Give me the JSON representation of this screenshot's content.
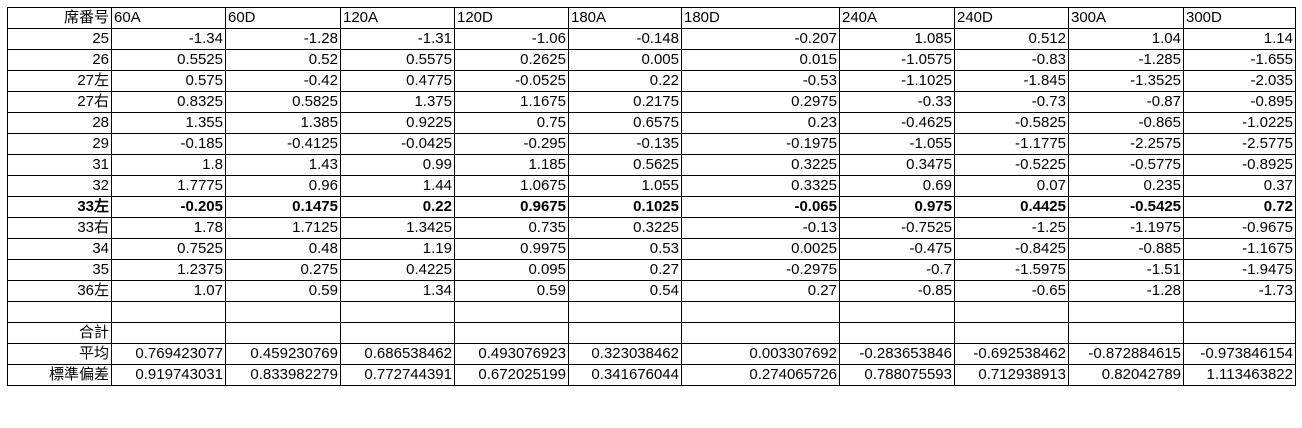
{
  "header": [
    "席番号",
    "60A",
    "60D",
    "120A",
    "120D",
    "180A",
    "180D",
    "240A",
    "240D",
    "300A",
    "300D"
  ],
  "rows": [
    {
      "label": "25",
      "values": [
        "-1.34",
        "-1.28",
        "-1.31",
        "-1.06",
        "-0.148",
        "-0.207",
        "1.085",
        "0.512",
        "1.04",
        "1.14"
      ]
    },
    {
      "label": "26",
      "values": [
        "0.5525",
        "0.52",
        "0.5575",
        "0.2625",
        "0.005",
        "0.015",
        "-1.0575",
        "-0.83",
        "-1.285",
        "-1.655"
      ]
    },
    {
      "label": "27左",
      "values": [
        "0.575",
        "-0.42",
        "0.4775",
        "-0.0525",
        "0.22",
        "-0.53",
        "-1.1025",
        "-1.845",
        "-1.3525",
        "-2.035"
      ]
    },
    {
      "label": "27右",
      "values": [
        "0.8325",
        "0.5825",
        "1.375",
        "1.1675",
        "0.2175",
        "0.2975",
        "-0.33",
        "-0.73",
        "-0.87",
        "-0.895"
      ]
    },
    {
      "label": "28",
      "values": [
        "1.355",
        "1.385",
        "0.9225",
        "0.75",
        "0.6575",
        "0.23",
        "-0.4625",
        "-0.5825",
        "-0.865",
        "-1.0225"
      ]
    },
    {
      "label": "29",
      "values": [
        "-0.185",
        "-0.4125",
        "-0.0425",
        "-0.295",
        "-0.135",
        "-0.1975",
        "-1.055",
        "-1.1775",
        "-2.2575",
        "-2.5775"
      ]
    },
    {
      "label": "31",
      "values": [
        "1.8",
        "1.43",
        "0.99",
        "1.185",
        "0.5625",
        "0.3225",
        "0.3475",
        "-0.5225",
        "-0.5775",
        "-0.8925"
      ]
    },
    {
      "label": "32",
      "values": [
        "1.7775",
        "0.96",
        "1.44",
        "1.0675",
        "1.055",
        "0.3325",
        "0.69",
        "0.07",
        "0.235",
        "0.37"
      ]
    },
    {
      "label": "33左",
      "bold": true,
      "values": [
        "-0.205",
        "0.1475",
        "0.22",
        "0.9675",
        "0.1025",
        "-0.065",
        "0.975",
        "0.4425",
        "-0.5425",
        "0.72"
      ]
    },
    {
      "label": "33右",
      "values": [
        "1.78",
        "1.7125",
        "1.3425",
        "0.735",
        "0.3225",
        "-0.13",
        "-0.7525",
        "-1.25",
        "-1.1975",
        "-0.9675"
      ]
    },
    {
      "label": "34",
      "values": [
        "0.7525",
        "0.48",
        "1.19",
        "0.9975",
        "0.53",
        "0.0025",
        "-0.475",
        "-0.8425",
        "-0.885",
        "-1.1675"
      ]
    },
    {
      "label": "35",
      "values": [
        "1.2375",
        "0.275",
        "0.4225",
        "0.095",
        "0.27",
        "-0.2975",
        "-0.7",
        "-1.5975",
        "-1.51",
        "-1.9475"
      ]
    },
    {
      "label": "36左",
      "values": [
        "1.07",
        "0.59",
        "1.34",
        "0.59",
        "0.54",
        "0.27",
        "-0.85",
        "-0.65",
        "-1.28",
        "-1.73"
      ]
    },
    {
      "label": "",
      "values": [
        "",
        "",
        "",
        "",
        "",
        "",
        "",
        "",
        "",
        ""
      ]
    },
    {
      "label": "合計",
      "values": [
        "",
        "",
        "",
        "",
        "",
        "",
        "",
        "",
        "",
        ""
      ]
    },
    {
      "label": "平均",
      "values": [
        "0.769423077",
        "0.459230769",
        "0.686538462",
        "0.493076923",
        "0.323038462",
        "0.003307692",
        "-0.283653846",
        "-0.692538462",
        "-0.872884615",
        "-0.973846154"
      ]
    },
    {
      "label": "標準偏差",
      "values": [
        "0.919743031",
        "0.833982279",
        "0.772744391",
        "0.672025199",
        "0.341676044",
        "0.274065726",
        "0.788075593",
        "0.712938913",
        "0.82042789",
        "1.113463822"
      ]
    }
  ]
}
